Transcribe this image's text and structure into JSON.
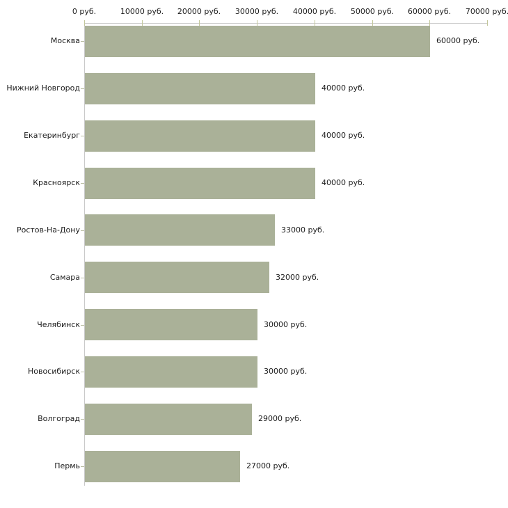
{
  "chart_data": {
    "type": "bar",
    "orientation": "horizontal",
    "title": "",
    "xlabel": "",
    "ylabel": "",
    "grid": false,
    "legend": "none",
    "categories": [
      "Москва",
      "Нижний Новгород",
      "Екатеринбург",
      "Красноярск",
      "Ростов-На-Дону",
      "Самара",
      "Челябинск",
      "Новосибирск",
      "Волгоград",
      "Пермь"
    ],
    "values": [
      60000,
      40000,
      40000,
      40000,
      33000,
      32000,
      30000,
      30000,
      29000,
      27000
    ],
    "value_labels": [
      "60000 руб.",
      "40000 руб.",
      "40000 руб.",
      "40000 руб.",
      "33000 руб.",
      "32000 руб.",
      "30000 руб.",
      "30000 руб.",
      "29000 руб.",
      "27000 руб."
    ],
    "xlim": [
      0,
      70000
    ],
    "x_ticks": [
      0,
      10000,
      20000,
      30000,
      40000,
      50000,
      60000,
      70000
    ],
    "x_tick_labels": [
      "0 руб.",
      "10000 руб.",
      "20000 руб.",
      "30000 руб.",
      "40000 руб.",
      "50000 руб.",
      "60000 руб.",
      "70000 руб."
    ],
    "colors": {
      "bar": "#aab198",
      "axis_line": "#c9c9c9",
      "tick": "#c3c79b",
      "text": "#1c1c1c",
      "background": "#ffffff"
    }
  }
}
